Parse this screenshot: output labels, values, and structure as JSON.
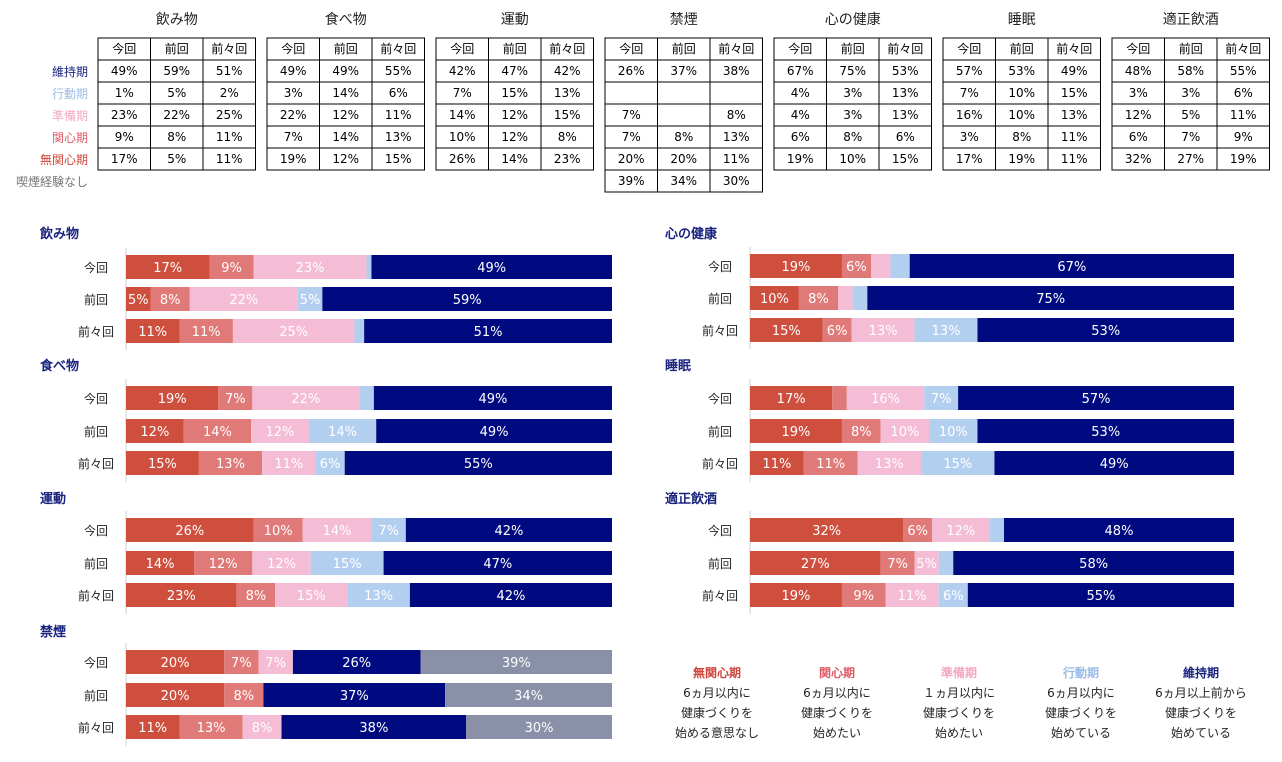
{
  "stage_labels": [
    "維持期",
    "行動期",
    "準備期",
    "関心期",
    "無関心期",
    "喫煙経験なし"
  ],
  "column_labels": [
    "今回",
    "前回",
    "前々回"
  ],
  "stage_colors": {
    "無関心期": "#cf4f3e",
    "関心期": "#e07a78",
    "準備期": "#f5bcd6",
    "行動期": "#b3cff0",
    "維持期": "#000a80",
    "喫煙経験なし": "#8a90a8"
  },
  "label_colors": {
    "維持期": "#1a237e",
    "行動期": "#9bbbe6",
    "準備期": "#f4a7c4",
    "関心期": "#e05a6a",
    "無関心期": "#d0453a",
    "喫煙経験なし": "#777777"
  },
  "tables": [
    {
      "title": "飲み物",
      "rows": [
        [
          "49%",
          "59%",
          "51%"
        ],
        [
          "1%",
          "5%",
          "2%"
        ],
        [
          "23%",
          "22%",
          "25%"
        ],
        [
          "9%",
          "8%",
          "11%"
        ],
        [
          "17%",
          "5%",
          "11%"
        ]
      ]
    },
    {
      "title": "食べ物",
      "rows": [
        [
          "49%",
          "49%",
          "55%"
        ],
        [
          "3%",
          "14%",
          "6%"
        ],
        [
          "22%",
          "12%",
          "11%"
        ],
        [
          "7%",
          "14%",
          "13%"
        ],
        [
          "19%",
          "12%",
          "15%"
        ]
      ]
    },
    {
      "title": "運動",
      "rows": [
        [
          "42%",
          "47%",
          "42%"
        ],
        [
          "7%",
          "15%",
          "13%"
        ],
        [
          "14%",
          "12%",
          "15%"
        ],
        [
          "10%",
          "12%",
          "8%"
        ],
        [
          "26%",
          "14%",
          "23%"
        ]
      ]
    },
    {
      "title": "禁煙",
      "rows": [
        [
          "26%",
          "37%",
          "38%"
        ],
        [
          "",
          "",
          ""
        ],
        [
          "7%",
          "",
          "8%"
        ],
        [
          "7%",
          "8%",
          "13%"
        ],
        [
          "20%",
          "20%",
          "11%"
        ],
        [
          "39%",
          "34%",
          "30%"
        ]
      ]
    },
    {
      "title": "心の健康",
      "rows": [
        [
          "67%",
          "75%",
          "53%"
        ],
        [
          "4%",
          "3%",
          "13%"
        ],
        [
          "4%",
          "3%",
          "13%"
        ],
        [
          "6%",
          "8%",
          "6%"
        ],
        [
          "19%",
          "10%",
          "15%"
        ]
      ]
    },
    {
      "title": "睡眠",
      "rows": [
        [
          "57%",
          "53%",
          "49%"
        ],
        [
          "7%",
          "10%",
          "15%"
        ],
        [
          "16%",
          "10%",
          "13%"
        ],
        [
          "3%",
          "8%",
          "11%"
        ],
        [
          "17%",
          "19%",
          "11%"
        ]
      ]
    },
    {
      "title": "適正飲酒",
      "rows": [
        [
          "48%",
          "58%",
          "55%"
        ],
        [
          "3%",
          "3%",
          "6%"
        ],
        [
          "12%",
          "5%",
          "11%"
        ],
        [
          "6%",
          "7%",
          "9%"
        ],
        [
          "32%",
          "27%",
          "19%"
        ]
      ]
    }
  ],
  "chart_data": [
    {
      "type": "bar",
      "orientation": "horizontal",
      "stacked": true,
      "title": "飲み物",
      "categories": [
        "今回",
        "前回",
        "前々回"
      ],
      "series": [
        {
          "name": "無関心期",
          "values": [
            17,
            5,
            11
          ]
        },
        {
          "name": "関心期",
          "values": [
            9,
            8,
            11
          ]
        },
        {
          "name": "準備期",
          "values": [
            23,
            22,
            25
          ]
        },
        {
          "name": "行動期",
          "values": [
            1,
            5,
            2
          ]
        },
        {
          "name": "維持期",
          "values": [
            49,
            59,
            51
          ]
        }
      ]
    },
    {
      "type": "bar",
      "orientation": "horizontal",
      "stacked": true,
      "title": "食べ物",
      "categories": [
        "今回",
        "前回",
        "前々回"
      ],
      "series": [
        {
          "name": "無関心期",
          "values": [
            19,
            12,
            15
          ]
        },
        {
          "name": "関心期",
          "values": [
            7,
            14,
            13
          ]
        },
        {
          "name": "準備期",
          "values": [
            22,
            12,
            11
          ]
        },
        {
          "name": "行動期",
          "values": [
            3,
            14,
            6
          ]
        },
        {
          "name": "維持期",
          "values": [
            49,
            49,
            55
          ]
        }
      ]
    },
    {
      "type": "bar",
      "orientation": "horizontal",
      "stacked": true,
      "title": "運動",
      "categories": [
        "今回",
        "前回",
        "前々回"
      ],
      "series": [
        {
          "name": "無関心期",
          "values": [
            26,
            14,
            23
          ]
        },
        {
          "name": "関心期",
          "values": [
            10,
            12,
            8
          ]
        },
        {
          "name": "準備期",
          "values": [
            14,
            12,
            15
          ]
        },
        {
          "name": "行動期",
          "values": [
            7,
            15,
            13
          ]
        },
        {
          "name": "維持期",
          "values": [
            42,
            47,
            42
          ]
        }
      ]
    },
    {
      "type": "bar",
      "orientation": "horizontal",
      "stacked": true,
      "title": "禁煙",
      "categories": [
        "今回",
        "前回",
        "前々回"
      ],
      "series": [
        {
          "name": "無関心期",
          "values": [
            20,
            20,
            11
          ]
        },
        {
          "name": "関心期",
          "values": [
            7,
            8,
            13
          ]
        },
        {
          "name": "準備期",
          "values": [
            7,
            0,
            8
          ]
        },
        {
          "name": "維持期",
          "values": [
            26,
            37,
            38
          ]
        },
        {
          "name": "喫煙経験なし",
          "values": [
            39,
            34,
            30
          ]
        }
      ]
    },
    {
      "type": "bar",
      "orientation": "horizontal",
      "stacked": true,
      "title": "心の健康",
      "categories": [
        "今回",
        "前回",
        "前々回"
      ],
      "series": [
        {
          "name": "無関心期",
          "values": [
            19,
            10,
            15
          ]
        },
        {
          "name": "関心期",
          "values": [
            6,
            8,
            6
          ]
        },
        {
          "name": "準備期",
          "values": [
            4,
            3,
            13
          ]
        },
        {
          "name": "行動期",
          "values": [
            4,
            3,
            13
          ]
        },
        {
          "name": "維持期",
          "values": [
            67,
            75,
            53
          ]
        }
      ]
    },
    {
      "type": "bar",
      "orientation": "horizontal",
      "stacked": true,
      "title": "睡眠",
      "categories": [
        "今回",
        "前回",
        "前々回"
      ],
      "series": [
        {
          "name": "無関心期",
          "values": [
            17,
            19,
            11
          ]
        },
        {
          "name": "関心期",
          "values": [
            3,
            8,
            11
          ]
        },
        {
          "name": "準備期",
          "values": [
            16,
            10,
            13
          ]
        },
        {
          "name": "行動期",
          "values": [
            7,
            10,
            15
          ]
        },
        {
          "name": "維持期",
          "values": [
            57,
            53,
            49
          ]
        }
      ]
    },
    {
      "type": "bar",
      "orientation": "horizontal",
      "stacked": true,
      "title": "適正飲酒",
      "categories": [
        "今回",
        "前回",
        "前々回"
      ],
      "series": [
        {
          "name": "無関心期",
          "values": [
            32,
            27,
            19
          ]
        },
        {
          "name": "関心期",
          "values": [
            6,
            7,
            9
          ]
        },
        {
          "name": "準備期",
          "values": [
            12,
            5,
            11
          ]
        },
        {
          "name": "行動期",
          "values": [
            3,
            3,
            6
          ]
        },
        {
          "name": "維持期",
          "values": [
            48,
            58,
            55
          ]
        }
      ]
    }
  ],
  "legend": [
    {
      "name": "無関心期",
      "lines": [
        "6ヵ月以内に",
        "健康づくりを",
        "始める意思なし"
      ]
    },
    {
      "name": "関心期",
      "lines": [
        "6ヵ月以内に",
        "健康づくりを",
        "始めたい"
      ]
    },
    {
      "name": "準備期",
      "lines": [
        "１ヵ月以内に",
        "健康づくりを",
        "始めたい"
      ]
    },
    {
      "name": "行動期",
      "lines": [
        "6ヵ月以内に",
        "健康づくりを",
        "始めている"
      ]
    },
    {
      "name": "維持期",
      "lines": [
        "6ヵ月以上前から",
        "健康づくりを",
        "始めている"
      ]
    }
  ]
}
